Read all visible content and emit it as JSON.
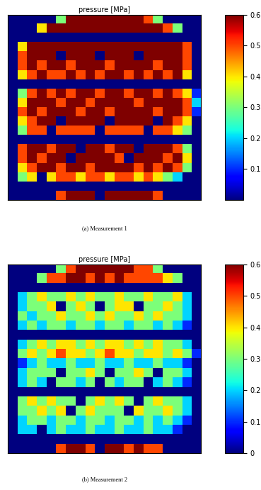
{
  "chart_data": [
    {
      "type": "heatmap",
      "title": "pressure [MPa]",
      "caption": "(a) Measurement 1",
      "tick_labels": false,
      "colorbar_range": [
        0,
        0.6
      ],
      "colorbar_ticks": [
        0.1,
        0.2,
        0.3,
        0.4,
        0.5,
        0.6
      ],
      "cells": [
        [
          0,
          0,
          0,
          0,
          0,
          0.3,
          0.6,
          0.6,
          0.6,
          0.6,
          0.6,
          0.6,
          0.6,
          0.6,
          0.5,
          0.3,
          0,
          0,
          0,
          0
        ],
        [
          0,
          0,
          0,
          0.4,
          0.6,
          0.6,
          0.6,
          0.6,
          0.6,
          0.6,
          0.6,
          0.6,
          0.6,
          0.6,
          0.6,
          0.6,
          0.5,
          0.3,
          0,
          0
        ],
        [
          0,
          0,
          0,
          0,
          0,
          0,
          0,
          0,
          0,
          0,
          0,
          0,
          0,
          0,
          0,
          0,
          0,
          0,
          0,
          0
        ],
        [
          0,
          0.4,
          0.6,
          0.6,
          0.6,
          0.6,
          0.6,
          0.6,
          0.6,
          0.6,
          0.6,
          0.6,
          0.6,
          0.6,
          0.6,
          0.6,
          0.6,
          0.6,
          0.5,
          0
        ],
        [
          0,
          0.5,
          0.6,
          0.6,
          0.6,
          0,
          0.6,
          0.6,
          0.6,
          0,
          0.6,
          0.6,
          0.6,
          0,
          0.6,
          0.6,
          0.6,
          0.6,
          0.5,
          0
        ],
        [
          0,
          0.5,
          0.6,
          0.5,
          0.6,
          0.6,
          0.5,
          0.6,
          0.6,
          0.6,
          0.5,
          0.6,
          0.6,
          0.6,
          0.6,
          0.5,
          0.6,
          0.6,
          0.5,
          0
        ],
        [
          0,
          0.4,
          0.5,
          0.6,
          0.5,
          0.5,
          0.6,
          0.5,
          0.6,
          0.5,
          0.6,
          0.6,
          0.5,
          0.6,
          0.5,
          0.6,
          0.5,
          0.6,
          0.4,
          0
        ],
        [
          0,
          0,
          0,
          0,
          0,
          0,
          0,
          0,
          0,
          0,
          0,
          0,
          0,
          0,
          0,
          0,
          0,
          0,
          0,
          0
        ],
        [
          0,
          0.3,
          0.5,
          0.6,
          0.5,
          0.6,
          0.5,
          0.6,
          0.6,
          0.5,
          0.6,
          0.6,
          0.5,
          0.6,
          0.6,
          0.5,
          0.6,
          0.5,
          0.4,
          0.1
        ],
        [
          0,
          0.4,
          0.6,
          0.6,
          0.6,
          0.5,
          0.6,
          0.6,
          0.5,
          0.6,
          0.6,
          0.6,
          0.6,
          0.5,
          0.6,
          0.6,
          0.6,
          0.6,
          0.5,
          0.2
        ],
        [
          0,
          0.5,
          0.6,
          0.5,
          0.6,
          0.6,
          0.6,
          0.5,
          0.6,
          0.6,
          0.5,
          0.6,
          0.6,
          0.6,
          0.6,
          0.5,
          0.6,
          0.6,
          0.5,
          0.1
        ],
        [
          0,
          0.4,
          0.5,
          0.6,
          0.6,
          0,
          0.6,
          0.6,
          0.6,
          0.6,
          0,
          0.6,
          0.6,
          0.6,
          0.6,
          0,
          0.6,
          0.5,
          0.4,
          0
        ],
        [
          0,
          0.3,
          0.5,
          0.5,
          0,
          0.5,
          0.5,
          0.5,
          0.5,
          0,
          0.5,
          0.5,
          0.5,
          0.5,
          0,
          0.5,
          0.5,
          0.4,
          0.3,
          0
        ],
        [
          0,
          0,
          0,
          0,
          0,
          0,
          0,
          0,
          0,
          0,
          0,
          0,
          0,
          0,
          0,
          0,
          0,
          0,
          0,
          0
        ],
        [
          0,
          0.5,
          0.6,
          0.6,
          0.5,
          0.6,
          0.6,
          0,
          0.6,
          0.6,
          0.5,
          0.6,
          0.6,
          0,
          0.6,
          0.6,
          0.6,
          0.5,
          0.3,
          0
        ],
        [
          0,
          0.5,
          0.6,
          0.5,
          0.6,
          0.6,
          0,
          0.6,
          0.6,
          0.6,
          0.6,
          0.5,
          0,
          0.6,
          0.6,
          0.6,
          0.5,
          0.6,
          0.4,
          0
        ],
        [
          0,
          0.4,
          0.5,
          0.6,
          0.6,
          0.5,
          0.6,
          0.6,
          0.5,
          0.6,
          0.6,
          0.6,
          0.6,
          0.5,
          0.6,
          0.5,
          0.6,
          0.5,
          0.3,
          0
        ],
        [
          0,
          0.3,
          0.4,
          0,
          0.4,
          0.5,
          0.5,
          0.4,
          0.5,
          0.5,
          0.4,
          0.5,
          0.5,
          0.4,
          0.5,
          0.4,
          0.3,
          0.2,
          0,
          0
        ],
        [
          0,
          0,
          0,
          0,
          0,
          0,
          0,
          0,
          0,
          0,
          0,
          0,
          0,
          0,
          0,
          0,
          0,
          0,
          0,
          0
        ],
        [
          0,
          0,
          0,
          0,
          0,
          0.5,
          0.6,
          0.6,
          0.6,
          0,
          0.6,
          0.6,
          0.6,
          0.6,
          0.6,
          0.5,
          0,
          0,
          0,
          0
        ]
      ]
    },
    {
      "type": "heatmap",
      "title": "pressure [MPa]",
      "caption": "(b) Measurement 2",
      "tick_labels": false,
      "colorbar_range": [
        0,
        0.6
      ],
      "colorbar_ticks": [
        0,
        0.1,
        0.2,
        0.3,
        0.4,
        0.5,
        0.6
      ],
      "cells": [
        [
          0,
          0,
          0,
          0,
          0,
          0.3,
          0.5,
          0.6,
          0.6,
          0.6,
          0.6,
          0.6,
          0.6,
          0.5,
          0.5,
          0.3,
          0,
          0,
          0,
          0
        ],
        [
          0,
          0,
          0,
          0.3,
          0.5,
          0.5,
          0.6,
          0.6,
          0.5,
          0.6,
          0.5,
          0.6,
          0.5,
          0.5,
          0.5,
          0.5,
          0.4,
          0.3,
          0,
          0
        ],
        [
          0,
          0,
          0,
          0,
          0,
          0,
          0,
          0,
          0,
          0,
          0,
          0,
          0,
          0,
          0,
          0,
          0,
          0,
          0,
          0
        ],
        [
          0,
          0.2,
          0.3,
          0.4,
          0.3,
          0.3,
          0.4,
          0.3,
          0.4,
          0.3,
          0.3,
          0.4,
          0.3,
          0.3,
          0.4,
          0.3,
          0.3,
          0.4,
          0.2,
          0
        ],
        [
          0,
          0.2,
          0.3,
          0.3,
          0.4,
          0,
          0.3,
          0.4,
          0.3,
          0,
          0.3,
          0.4,
          0.4,
          0,
          0.3,
          0.3,
          0.4,
          0.3,
          0.2,
          0
        ],
        [
          0,
          0.3,
          0.2,
          0.3,
          0.3,
          0.4,
          0.3,
          0.3,
          0.4,
          0.3,
          0.4,
          0.3,
          0.3,
          0.4,
          0.3,
          0.4,
          0.3,
          0.3,
          0.2,
          0
        ],
        [
          0,
          0.2,
          0.3,
          0.2,
          0.3,
          0.3,
          0.2,
          0.3,
          0.3,
          0.2,
          0.3,
          0.3,
          0.2,
          0.3,
          0.3,
          0.2,
          0.3,
          0.2,
          0.1,
          0
        ],
        [
          0,
          0,
          0,
          0,
          0,
          0,
          0,
          0,
          0,
          0,
          0,
          0,
          0,
          0,
          0,
          0,
          0,
          0,
          0,
          0
        ],
        [
          0,
          0.2,
          0.3,
          0.4,
          0.3,
          0.4,
          0.4,
          0.3,
          0.4,
          0.3,
          0.4,
          0.4,
          0.3,
          0.4,
          0.3,
          0.4,
          0.3,
          0.3,
          0.2,
          0
        ],
        [
          0,
          0.3,
          0.4,
          0.3,
          0.4,
          0.5,
          0.4,
          0.4,
          0.3,
          0.4,
          0.5,
          0.4,
          0.4,
          0.3,
          0.4,
          0.4,
          0.3,
          0.4,
          0.3,
          0.1
        ],
        [
          0,
          0.1,
          0.2,
          0.3,
          0.2,
          0.2,
          0.3,
          0.2,
          0.2,
          0.3,
          0.2,
          0.2,
          0.3,
          0.2,
          0.2,
          0.3,
          0.2,
          0.2,
          0.1,
          0
        ],
        [
          0,
          0.2,
          0.3,
          0.3,
          0.3,
          0,
          0.3,
          0.3,
          0.4,
          0.3,
          0,
          0.3,
          0.3,
          0.4,
          0.3,
          0,
          0.3,
          0.3,
          0.2,
          0
        ],
        [
          0,
          0.2,
          0.3,
          0.2,
          0,
          0.3,
          0.3,
          0.2,
          0.3,
          0,
          0.3,
          0.2,
          0.3,
          0.3,
          0,
          0.2,
          0.3,
          0.2,
          0.1,
          0
        ],
        [
          0,
          0,
          0,
          0,
          0,
          0,
          0,
          0,
          0,
          0,
          0,
          0,
          0,
          0,
          0,
          0,
          0,
          0,
          0,
          0
        ],
        [
          0,
          0.3,
          0.4,
          0.3,
          0.4,
          0.3,
          0.3,
          0,
          0.3,
          0.4,
          0.3,
          0.4,
          0.3,
          0,
          0.3,
          0.4,
          0.3,
          0.3,
          0.2,
          0
        ],
        [
          0,
          0.3,
          0.3,
          0.4,
          0.3,
          0.4,
          0,
          0.3,
          0.4,
          0.3,
          0.3,
          0.3,
          0,
          0.4,
          0.3,
          0.3,
          0.4,
          0.3,
          0.2,
          0
        ],
        [
          0,
          0.2,
          0.3,
          0.3,
          0.2,
          0.3,
          0.3,
          0.2,
          0.3,
          0.3,
          0.2,
          0.3,
          0.3,
          0.2,
          0.3,
          0.2,
          0.3,
          0.2,
          0.1,
          0
        ],
        [
          0,
          0.2,
          0.2,
          0,
          0.2,
          0.3,
          0.2,
          0.2,
          0.3,
          0.2,
          0.2,
          0.3,
          0.2,
          0.2,
          0.3,
          0.2,
          0.2,
          0.1,
          0,
          0
        ],
        [
          0,
          0,
          0,
          0,
          0,
          0,
          0,
          0,
          0,
          0,
          0,
          0,
          0,
          0,
          0,
          0,
          0,
          0,
          0,
          0
        ],
        [
          0,
          0,
          0,
          0,
          0,
          0.5,
          0.6,
          0.6,
          0.5,
          0,
          0.6,
          0.6,
          0.5,
          0.6,
          0.5,
          0.5,
          0,
          0,
          0,
          0
        ]
      ]
    }
  ]
}
